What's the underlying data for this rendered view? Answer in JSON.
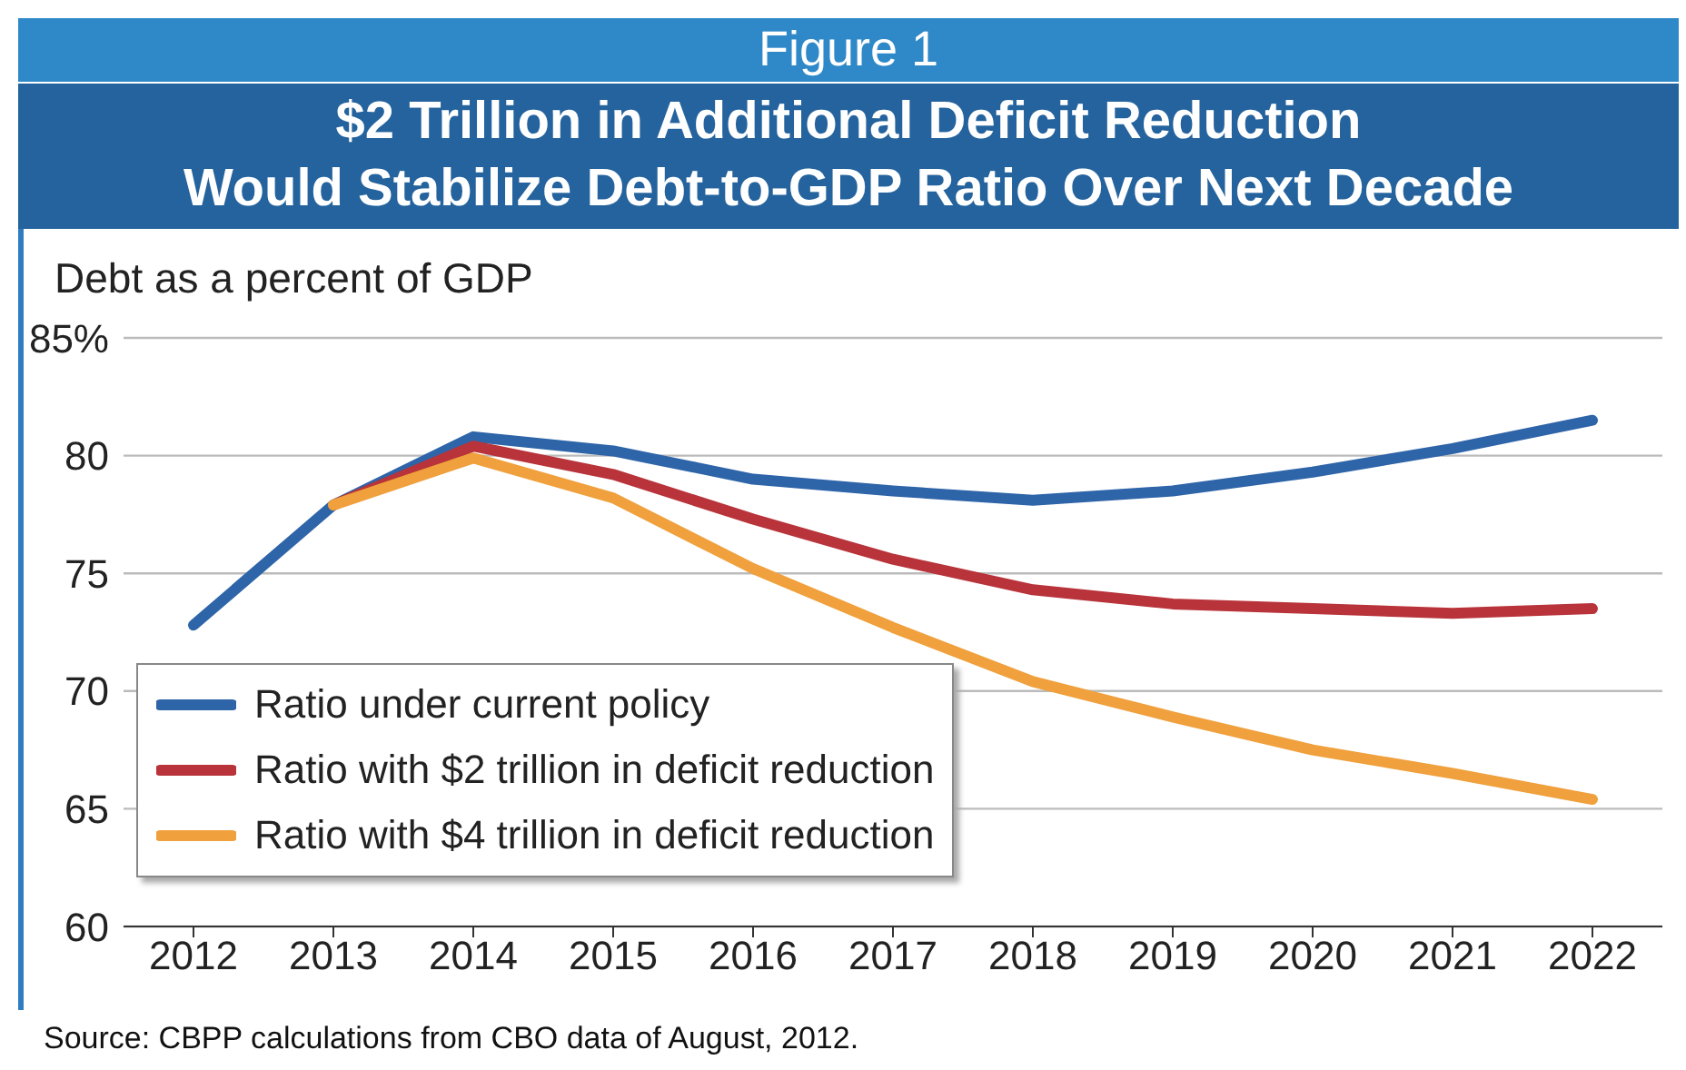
{
  "chart_data": {
    "type": "line",
    "title": "$2 Trillion in Additional Deficit Reduction\nWould Stabilize Debt-to-GDP Ratio Over Next Decade",
    "subtitle": "Figure 1",
    "ylabel": "Debt as a percent of GDP",
    "annotations": [
      "Source: CBPP calculations from CBO data of August, 2012."
    ],
    "x": [
      2012,
      2013,
      2014,
      2015,
      2016,
      2017,
      2018,
      2019,
      2020,
      2021,
      2022
    ],
    "xlim": [
      2011.5,
      2022.5
    ],
    "xticks": [
      2012,
      2013,
      2014,
      2015,
      2016,
      2017,
      2018,
      2019,
      2020,
      2021,
      2022
    ],
    "ylim": [
      60,
      85
    ],
    "yticks": [
      60,
      65,
      70,
      75,
      80,
      {
        "value": 85,
        "label": "85%"
      }
    ],
    "grid": "y",
    "legend": "bottom left",
    "marker": "none",
    "line_style": "solid",
    "series": [
      {
        "name": "Ratio under current policy",
        "color": "#2e64a8",
        "values": [
          72.8,
          77.9,
          80.8,
          80.2,
          79.0,
          78.5,
          78.1,
          78.5,
          79.3,
          80.3,
          81.5
        ]
      },
      {
        "name": "Ratio with $2 trillion in deficit reduction",
        "color": "#b8333a",
        "values": [
          null,
          77.9,
          80.4,
          79.2,
          77.3,
          75.6,
          74.3,
          73.7,
          73.5,
          73.3,
          73.5
        ]
      },
      {
        "name": "Ratio with $4 trillion in deficit reduction",
        "color": "#f0a03c",
        "values": [
          null,
          77.9,
          79.9,
          78.2,
          75.2,
          72.7,
          70.4,
          68.9,
          67.5,
          66.5,
          65.4
        ]
      }
    ]
  }
}
